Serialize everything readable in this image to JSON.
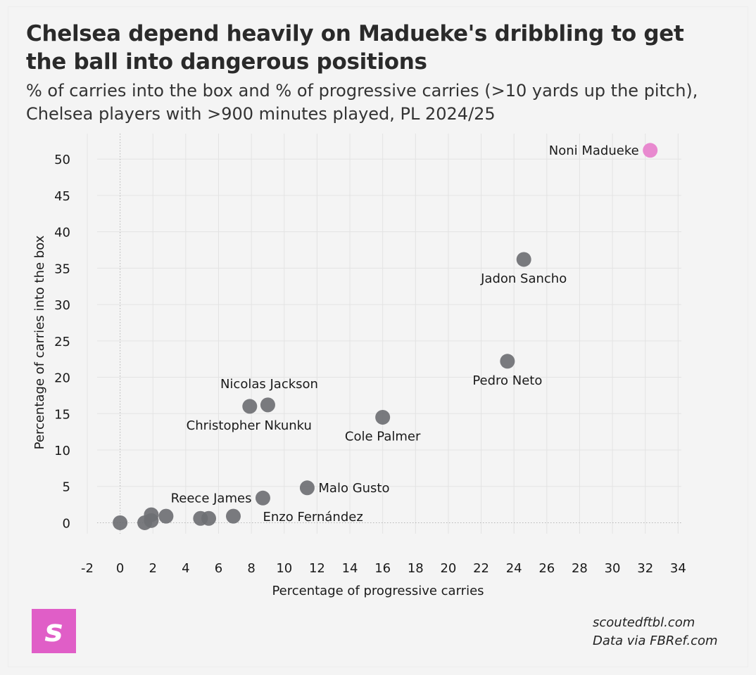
{
  "header": {
    "title": "Chelsea depend heavily on Madueke's dribbling to get the ball into dangerous positions",
    "subtitle": "% of carries into the box and % of progressive carries (>10 yards up the pitch), Chelsea players with >900 minutes played, PL 2024/25"
  },
  "footer": {
    "logo_letter": "s",
    "site": "scoutedftbl.com",
    "source": "Data via FBRef.com"
  },
  "colors": {
    "highlight": "#e889cf",
    "point": "#6e6f73",
    "grid": "#e3e3e3",
    "zero_line": "#b5b5b5",
    "logo": "#e05ec7"
  },
  "chart_data": {
    "type": "scatter",
    "xlabel": "Percentage of progressive carries",
    "ylabel": "Percentage of carries into the box",
    "xlim": [
      -2.6,
      34.2
    ],
    "ylim": [
      -4.5,
      53.5
    ],
    "xticks": [
      -2,
      0,
      2,
      4,
      6,
      8,
      10,
      12,
      14,
      16,
      18,
      20,
      22,
      24,
      26,
      28,
      30,
      32,
      34
    ],
    "yticks": [
      0,
      5,
      10,
      15,
      20,
      25,
      30,
      35,
      40,
      45,
      50
    ],
    "grid": true,
    "points": [
      {
        "x": 32.3,
        "y": 51.2,
        "label": "Noni Madueke",
        "label_pos": "left",
        "highlight": true
      },
      {
        "x": 24.6,
        "y": 36.2,
        "label": "Jadon Sancho",
        "label_pos": "below",
        "highlight": false
      },
      {
        "x": 23.6,
        "y": 22.2,
        "label": "Pedro Neto",
        "label_pos": "below",
        "highlight": false
      },
      {
        "x": 16.0,
        "y": 14.5,
        "label": "Cole Palmer",
        "label_pos": "below",
        "highlight": false
      },
      {
        "x": 9.0,
        "y": 16.2,
        "label": "Nicolas Jackson",
        "label_pos": "above",
        "highlight": false
      },
      {
        "x": 7.9,
        "y": 16.0,
        "label": "Christopher Nkunku",
        "label_pos": "below",
        "highlight": false
      },
      {
        "x": 11.4,
        "y": 4.8,
        "label": "Malo Gusto",
        "label_pos": "right",
        "highlight": false
      },
      {
        "x": 8.7,
        "y": 3.4,
        "label": "Reece James",
        "label_pos": "left",
        "highlight": false
      },
      {
        "x": 6.9,
        "y": 0.9,
        "label": "Enzo Fernández",
        "label_pos": "below-right",
        "highlight": false
      },
      {
        "x": 5.4,
        "y": 0.6,
        "label": "",
        "label_pos": "none",
        "highlight": false
      },
      {
        "x": 4.9,
        "y": 0.6,
        "label": "",
        "label_pos": "none",
        "highlight": false
      },
      {
        "x": 2.8,
        "y": 0.9,
        "label": "",
        "label_pos": "none",
        "highlight": false
      },
      {
        "x": 1.9,
        "y": 1.1,
        "label": "",
        "label_pos": "none",
        "highlight": false
      },
      {
        "x": 1.9,
        "y": 0.3,
        "label": "",
        "label_pos": "none",
        "highlight": false
      },
      {
        "x": 1.5,
        "y": 0.0,
        "label": "",
        "label_pos": "none",
        "highlight": false
      },
      {
        "x": 0.0,
        "y": 0.0,
        "label": "",
        "label_pos": "none",
        "highlight": false
      }
    ]
  }
}
